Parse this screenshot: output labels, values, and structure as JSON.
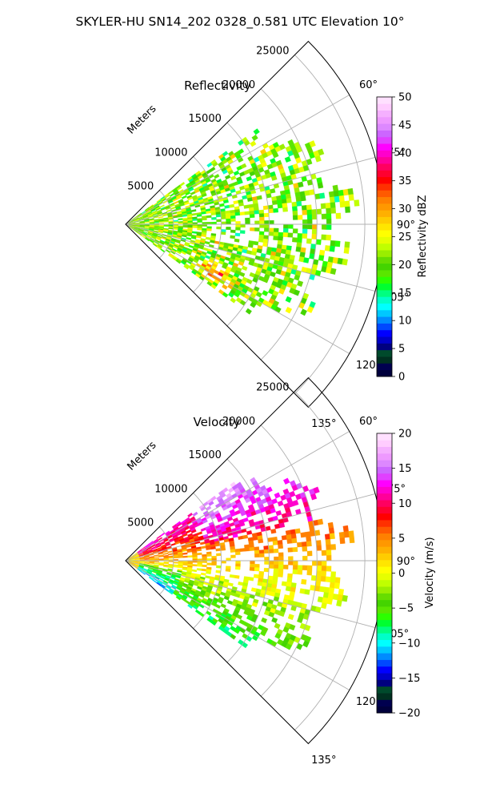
{
  "figure": {
    "suptitle": "SKYLER-HU  SN14_202  0328_0.581 UTC Elevation 10°"
  },
  "chart_data": [
    {
      "type": "heatmap",
      "projection": "polar-sector",
      "title": "Reflectivity",
      "radial_label": "Meters",
      "radial_ticks": [
        5000,
        10000,
        15000,
        20000,
        25000
      ],
      "radial_tick_labels": [
        "5000",
        "10000",
        "15000",
        "20000",
        "25000"
      ],
      "r_max": 27000,
      "theta_range_deg": [
        45,
        135
      ],
      "theta_ticks": [
        60,
        75,
        90,
        105,
        120,
        135
      ],
      "theta_tick_labels": [
        "60°",
        "75°",
        "90°",
        "105°",
        "120°",
        "135°"
      ],
      "grid": true,
      "colorbar": {
        "label": "Reflectivity dBZ",
        "range": [
          0,
          50
        ],
        "ticks": [
          0,
          5,
          10,
          15,
          20,
          25,
          30,
          35,
          40,
          45,
          50
        ],
        "tick_labels": [
          "0",
          "5",
          "10",
          "15",
          "20",
          "25",
          "30",
          "35",
          "40",
          "45",
          "50"
        ],
        "colors": [
          "#00003c",
          "#00004f",
          "#003020",
          "#004a2c",
          "#00007f",
          "#0000c8",
          "#0000ff",
          "#0048ff",
          "#008cff",
          "#00c8ff",
          "#00ffff",
          "#00ffc8",
          "#00ff80",
          "#00ff30",
          "#2cff00",
          "#5ae600",
          "#44d400",
          "#66dd00",
          "#9aee00",
          "#c0ff00",
          "#e6ff00",
          "#ffff00",
          "#ffe600",
          "#ffcc00",
          "#ffb000",
          "#ff9800",
          "#ff8000",
          "#ff5a00",
          "#ff3000",
          "#ff0000",
          "#ff0030",
          "#ff0060",
          "#ff0099",
          "#ff00cc",
          "#ff00ff",
          "#e040ff",
          "#cc66ff",
          "#dd88ff",
          "#ee99ff",
          "#f5b0ff",
          "#ffccff",
          "#ffe0ff"
        ]
      },
      "field_summary": {
        "echo_extent_m": [
          0,
          23000
        ],
        "azimuth_extent_deg": [
          55,
          125
        ],
        "typical_values_dbz": [
          15,
          30
        ],
        "max_values_dbz": 36,
        "core_location": "azimuth ~120°, range ~9000–12000 m"
      }
    },
    {
      "type": "heatmap",
      "projection": "polar-sector",
      "title": "Velocity",
      "radial_label": "Meters",
      "radial_ticks": [
        5000,
        10000,
        15000,
        20000,
        25000
      ],
      "radial_tick_labels": [
        "5000",
        "10000",
        "15000",
        "20000",
        "25000"
      ],
      "r_max": 27000,
      "theta_range_deg": [
        45,
        135
      ],
      "theta_ticks": [
        60,
        75,
        90,
        105,
        120,
        135
      ],
      "theta_tick_labels": [
        "60°",
        "75°",
        "90°",
        "105°",
        "120°",
        "135°"
      ],
      "grid": true,
      "colorbar": {
        "label": "Velocity (m/s)",
        "range": [
          -20,
          20
        ],
        "ticks": [
          -20,
          -15,
          -10,
          -5,
          0,
          5,
          10,
          15,
          20
        ],
        "tick_labels": [
          "−20",
          "−15",
          "−10",
          "−5",
          "0",
          "5",
          "10",
          "15",
          "20"
        ],
        "colors": [
          "#00003c",
          "#00004f",
          "#003020",
          "#004a2c",
          "#00007f",
          "#0000c8",
          "#0000ff",
          "#0048ff",
          "#008cff",
          "#00c8ff",
          "#00ffff",
          "#00ffc8",
          "#00ff80",
          "#00ff30",
          "#2cff00",
          "#5ae600",
          "#44d400",
          "#66dd00",
          "#9aee00",
          "#c0ff00",
          "#e6ff00",
          "#ffff00",
          "#ffe600",
          "#ffcc00",
          "#ffb000",
          "#ff9800",
          "#ff8000",
          "#ff5a00",
          "#ff3000",
          "#ff0000",
          "#ff0030",
          "#ff0060",
          "#ff0099",
          "#ff00cc",
          "#ff00ff",
          "#e040ff",
          "#cc66ff",
          "#dd88ff",
          "#ee99ff",
          "#f5b0ff",
          "#ffccff",
          "#ffe0ff"
        ]
      },
      "field_summary": {
        "echo_extent_m": [
          0,
          23000
        ],
        "azimuth_extent_deg": [
          55,
          125
        ],
        "northern_sector_values_ms": [
          10,
          16
        ],
        "central_values_ms": [
          0,
          5
        ],
        "southern_sector_values_ms": [
          -7,
          -2
        ]
      }
    }
  ]
}
